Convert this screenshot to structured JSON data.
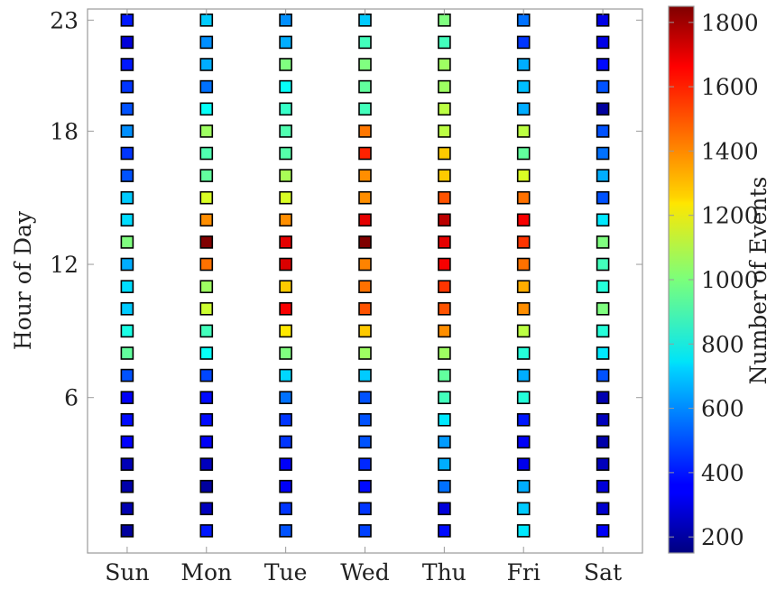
{
  "chart_data": {
    "type": "heatmap",
    "marker": "square",
    "colormap": "jet",
    "x_categories": [
      "Sun",
      "Mon",
      "Tue",
      "Wed",
      "Thu",
      "Fri",
      "Sat"
    ],
    "y_tick_labels": [
      "6",
      "12",
      "18",
      "23"
    ],
    "ylabel": "Hour of Day",
    "xlabel": "",
    "xlim": [
      -0.5,
      6.5
    ],
    "ylim": [
      -1,
      23.5
    ],
    "grid": false,
    "colorbar": {
      "label": "Number of Events",
      "range": [
        150,
        1850
      ],
      "ticks": [
        200,
        400,
        600,
        800,
        1000,
        1200,
        1400,
        1600,
        1800
      ]
    },
    "hours": [
      0,
      1,
      2,
      3,
      4,
      5,
      6,
      7,
      8,
      9,
      10,
      11,
      12,
      13,
      14,
      15,
      16,
      17,
      18,
      19,
      20,
      21,
      22,
      23
    ],
    "values": {
      "Sun": [
        200,
        230,
        220,
        240,
        360,
        380,
        350,
        500,
        950,
        830,
        700,
        730,
        650,
        1000,
        730,
        700,
        500,
        450,
        600,
        500,
        450,
        400,
        300,
        400
      ],
      "Mon": [
        400,
        250,
        200,
        250,
        350,
        380,
        380,
        480,
        800,
        900,
        1130,
        1050,
        1450,
        1850,
        1400,
        1150,
        950,
        920,
        1050,
        800,
        550,
        650,
        600,
        700
      ],
      "Tue": [
        500,
        450,
        350,
        350,
        450,
        450,
        550,
        720,
        1000,
        1250,
        1650,
        1300,
        1700,
        1680,
        1400,
        1150,
        1070,
        930,
        920,
        880,
        800,
        1000,
        650,
        600
      ],
      "Wed": [
        470,
        450,
        380,
        430,
        500,
        500,
        500,
        700,
        1050,
        1300,
        1500,
        1450,
        1420,
        1850,
        1680,
        1400,
        1400,
        1580,
        1440,
        900,
        950,
        1000,
        900,
        700
      ],
      "Thu": [
        380,
        300,
        550,
        650,
        620,
        750,
        900,
        950,
        1050,
        1400,
        1500,
        1550,
        1650,
        1680,
        1750,
        1500,
        1300,
        1300,
        1100,
        1100,
        1050,
        1050,
        900,
        1000
      ],
      "Fri": [
        750,
        700,
        650,
        330,
        350,
        400,
        850,
        650,
        850,
        1100,
        1400,
        1350,
        1450,
        1550,
        1650,
        1450,
        1150,
        950,
        1100,
        650,
        680,
        650,
        450,
        550
      ],
      "Sat": [
        350,
        280,
        300,
        250,
        220,
        250,
        230,
        500,
        750,
        850,
        1000,
        850,
        900,
        1000,
        750,
        500,
        650,
        550,
        500,
        200,
        500,
        380,
        320,
        320
      ]
    }
  }
}
